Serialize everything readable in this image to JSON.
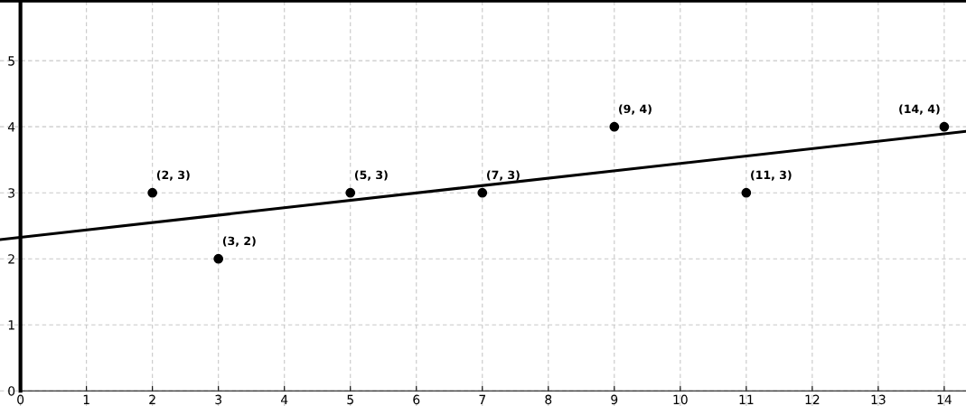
{
  "chart_data": {
    "type": "scatter",
    "xlim": [
      -0.31,
      14.33
    ],
    "ylim": [
      -0.23,
      5.92
    ],
    "xticks": [
      0,
      1,
      2,
      3,
      4,
      5,
      6,
      7,
      8,
      9,
      10,
      11,
      12,
      13,
      14
    ],
    "yticks": [
      0,
      1,
      2,
      3,
      4,
      5
    ],
    "grid": true,
    "series": [
      {
        "color": "#000000",
        "marker": "circle",
        "x": [
          2,
          3,
          5,
          7,
          9,
          11,
          14
        ],
        "values": [
          3,
          2,
          3,
          3,
          4,
          3,
          4
        ]
      },
      {
        "type": "line",
        "color": "#000000",
        "x": [
          -0.31,
          14.33
        ],
        "values": [
          2.29,
          3.93
        ],
        "line_style": "solid"
      }
    ],
    "annotations": [
      {
        "text": "(2, 3)",
        "x": 2,
        "y": 3
      },
      {
        "text": "(3, 2)",
        "x": 3,
        "y": 2
      },
      {
        "text": "(5, 3)",
        "x": 5,
        "y": 3
      },
      {
        "text": "(7, 3)",
        "x": 7,
        "y": 3
      },
      {
        "text": "(9, 4)",
        "x": 9,
        "y": 4
      },
      {
        "text": "(11, 3)",
        "x": 11,
        "y": 3
      },
      {
        "text": "(14, 4)",
        "x": 14,
        "y": 4
      }
    ]
  }
}
